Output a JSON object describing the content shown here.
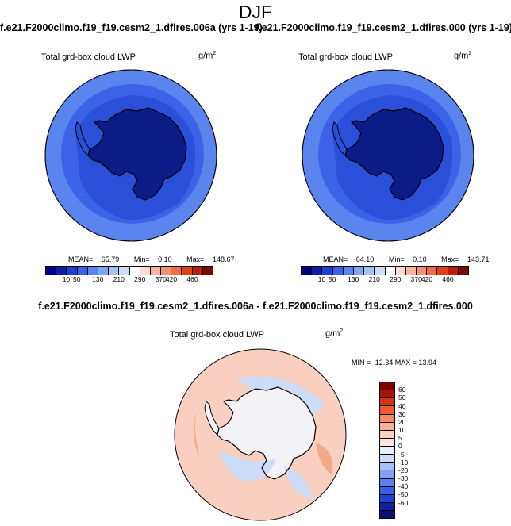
{
  "title": "DJF",
  "panels": [
    {
      "case_title": "f.e21.F2000climo.f19_f19.cesm2_1.dfires.006a (yrs 1-19)",
      "var_label": "Total grd-box cloud LWP",
      "units_base": "g/m",
      "units_exp": "2",
      "mean_label": "MEAN=",
      "mean": "65.79",
      "min_label": "Min=",
      "min": "0.10",
      "max_label": "Max=",
      "max": "148.67"
    },
    {
      "case_title": "f.e21.F2000climo.f19_f19.cesm2_1.dfires.000 (yrs 1-19)",
      "var_label": "Total grd-box cloud LWP",
      "units_base": "g/m",
      "units_exp": "2",
      "mean_label": "MEAN=",
      "mean": "64.10",
      "min_label": "Min=",
      "min": "0.10",
      "max_label": "Max=",
      "max": "143.71"
    }
  ],
  "diff_panel": {
    "case_title": "f.e21.F2000climo.f19_f19.cesm2_1.dfires.006a - f.e21.F2000climo.f19_f19.cesm2_1.dfires.000",
    "var_label": "Total grd-box cloud LWP",
    "units_base": "g/m",
    "units_exp": "2",
    "minmax_text": "MIN = -12.34 MAX =  13.94"
  },
  "colors": {
    "lwp_levels": [
      "#000080",
      "#0a1fa6",
      "#1c3fd0",
      "#3a62e8",
      "#5a85ef",
      "#7fa6f3",
      "#a7c3f6",
      "#cfdcf8",
      "#ffffff",
      "#fbd9cc",
      "#f7b69f",
      "#f59070",
      "#f06a45",
      "#e0401c",
      "#b81e0a",
      "#7a0800"
    ],
    "diff_levels": [
      "#0a1070",
      "#0d22a0",
      "#1f40d0",
      "#3860e6",
      "#5a82ee",
      "#7fa3f2",
      "#a7c2f6",
      "#cddcf8",
      "#e9eff9",
      "#fbe6df",
      "#f9d0c0",
      "#f6b197",
      "#f28a66",
      "#ec5a30",
      "#d6300f",
      "#a81405",
      "#7c0000"
    ],
    "dark_core": "#0b1c86",
    "inner_ring": "#2a4fd8",
    "mid_ocean": "#3b63e8",
    "outer_ocean": "#5a84ee",
    "diff_pink": "#f9d0c0",
    "diff_light_blue": "#cddcf8",
    "diff_white": "#f3f2f7",
    "diff_salmon": "#f4a88a",
    "coastline": "#000000"
  },
  "chart_data": [
    {
      "type": "heatmap",
      "projection": "south-polar stereographic",
      "title": "f.e21.F2000climo.f19_f19.cesm2_1.dfires.006a (yrs 1-19)",
      "variable": "Total grd-box cloud LWP",
      "units": "g/m2",
      "colorbar_ticks": [
        10,
        50,
        90,
        130,
        170,
        210,
        250,
        290,
        330,
        370,
        420,
        460
      ],
      "colorbar_tick_labels_shown": [
        "10",
        "50",
        "130",
        "210",
        "290",
        "370",
        "420",
        "460"
      ],
      "mean": 65.79,
      "min": 0.1,
      "max": 148.67
    },
    {
      "type": "heatmap",
      "projection": "south-polar stereographic",
      "title": "f.e21.F2000climo.f19_f19.cesm2_1.dfires.000 (yrs 1-19)",
      "variable": "Total grd-box cloud LWP",
      "units": "g/m2",
      "colorbar_ticks": [
        10,
        50,
        90,
        130,
        170,
        210,
        250,
        290,
        330,
        370,
        420,
        460
      ],
      "colorbar_tick_labels_shown": [
        "10",
        "50",
        "130",
        "210",
        "290",
        "370",
        "420",
        "460"
      ],
      "mean": 64.1,
      "min": 0.1,
      "max": 143.71
    },
    {
      "type": "heatmap",
      "projection": "south-polar stereographic",
      "title": "f.e21.F2000climo.f19_f19.cesm2_1.dfires.006a - f.e21.F2000climo.f19_f19.cesm2_1.dfires.000",
      "variable": "Total grd-box cloud LWP",
      "units": "g/m2",
      "colorbar_tick_labels_shown": [
        "60",
        "50",
        "40",
        "30",
        "20",
        "10",
        "5",
        "0",
        "-5",
        "-10",
        "-20",
        "-30",
        "-40",
        "-50",
        "-60"
      ],
      "min": -12.34,
      "max": 13.94
    }
  ]
}
